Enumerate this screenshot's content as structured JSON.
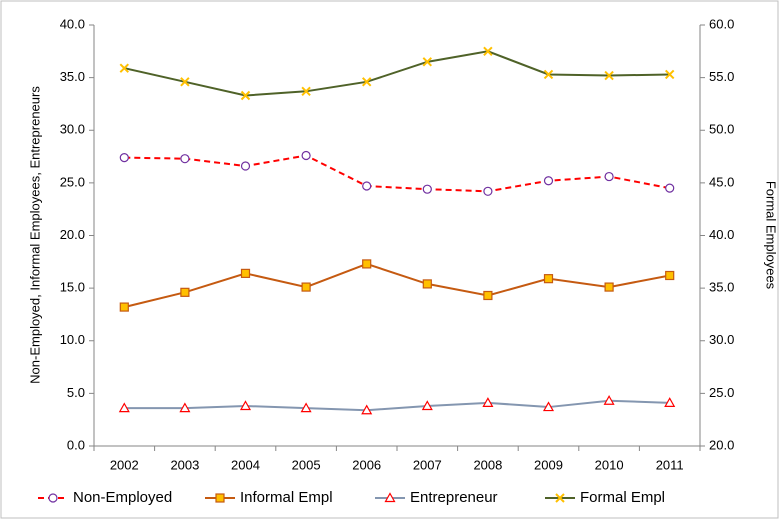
{
  "chart_data": {
    "type": "line",
    "y_label": "Non-Employed, Informal Employees, Entrepreneurs",
    "y2_label": "Formal Employees",
    "categories": [
      "2002",
      "2003",
      "2004",
      "2005",
      "2006",
      "2007",
      "2008",
      "2009",
      "2010",
      "2011"
    ],
    "ylim": [
      0,
      40
    ],
    "yticks": [
      {
        "value": 0,
        "label": "0.0"
      },
      {
        "value": 5,
        "label": "5.0"
      },
      {
        "value": 10,
        "label": "10.0"
      },
      {
        "value": 15,
        "label": "15.0"
      },
      {
        "value": 20,
        "label": "20.0"
      },
      {
        "value": 25,
        "label": "25.0"
      },
      {
        "value": 30,
        "label": "30.0"
      },
      {
        "value": 35,
        "label": "35.0"
      },
      {
        "value": 40,
        "label": "40.0"
      }
    ],
    "y2lim": [
      20,
      60
    ],
    "y2ticks": [
      {
        "value": 20,
        "label": "20.0"
      },
      {
        "value": 25,
        "label": "25.0"
      },
      {
        "value": 30,
        "label": "30.0"
      },
      {
        "value": 35,
        "label": "35.0"
      },
      {
        "value": 40,
        "label": "40.0"
      },
      {
        "value": 45,
        "label": "45.0"
      },
      {
        "value": 50,
        "label": "50.0"
      },
      {
        "value": 55,
        "label": "55.0"
      },
      {
        "value": 60,
        "label": "60.0"
      }
    ],
    "legend": "bottom",
    "series": [
      {
        "name": "Non-Employed",
        "color": "#ff0000",
        "marker": "circle",
        "marker_color": "#7030a0",
        "dash": true,
        "values": [
          27.4,
          27.3,
          26.6,
          27.6,
          24.7,
          24.4,
          24.2,
          25.2,
          25.6,
          24.5
        ]
      },
      {
        "name": "Informal Empl",
        "color": "#c55a11",
        "marker": "square",
        "marker_color": "#ffc000",
        "dash": false,
        "values": [
          13.2,
          14.6,
          16.4,
          15.1,
          17.3,
          15.4,
          14.3,
          15.9,
          15.1,
          16.2
        ]
      },
      {
        "name": "Entrepreneur",
        "color": "#8496b0",
        "marker": "triangle",
        "marker_color": "#ff0000",
        "dash": false,
        "values": [
          3.6,
          3.6,
          3.8,
          3.6,
          3.4,
          3.8,
          4.1,
          3.7,
          4.3,
          4.1
        ]
      },
      {
        "name": "Formal Empl",
        "color": "#4f6228",
        "marker": "x",
        "marker_color": "#ffc000",
        "dash": false,
        "axis": "y2",
        "values": [
          55.9,
          54.6,
          53.3,
          53.7,
          54.6,
          56.5,
          57.5,
          55.3,
          55.2,
          55.3
        ]
      }
    ]
  }
}
